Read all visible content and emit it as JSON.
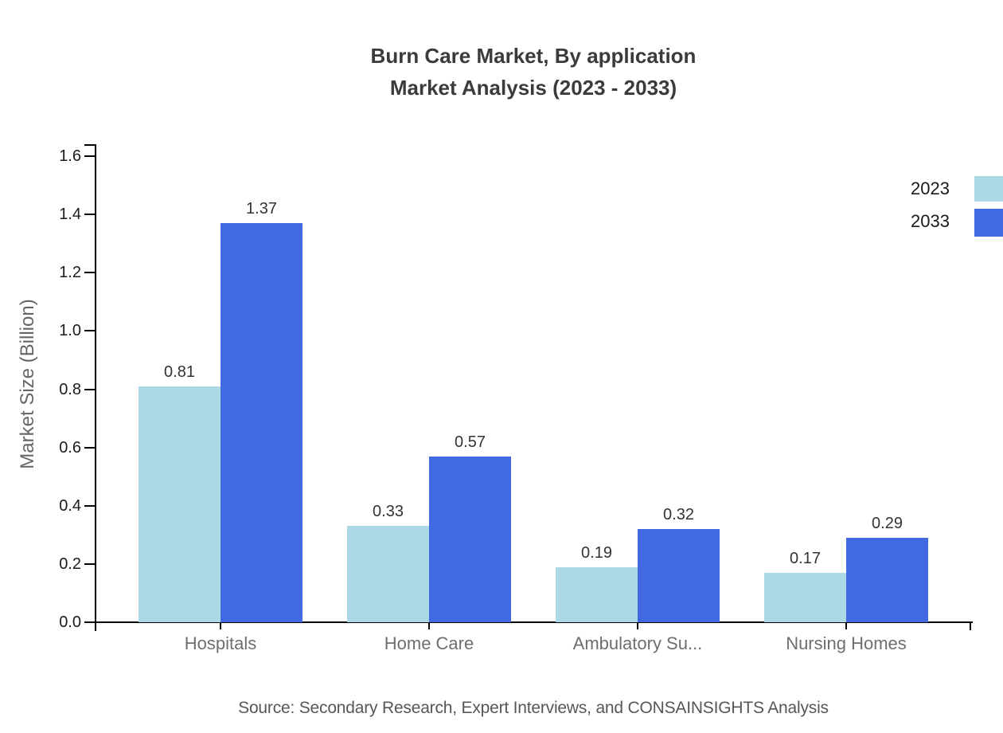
{
  "title": {
    "line1": "Burn Care Market, By application",
    "line2": "Market Analysis (2023 - 2033)"
  },
  "source": "Source: Secondary Research, Expert Interviews, and CONSAINSIGHTS Analysis",
  "legend": {
    "items": [
      {
        "label": "2023",
        "color": "#ADD8E6"
      },
      {
        "label": "2033",
        "color": "#4169E1"
      }
    ]
  },
  "chart_data": {
    "type": "bar",
    "title": "Burn Care Market, By application Market Analysis (2023 - 2033)",
    "categories": [
      "Hospitals",
      "Home Care",
      "Ambulatory Su...",
      "Nursing Homes"
    ],
    "series": [
      {
        "name": "2023",
        "color": "#ADD8E6",
        "values": [
          0.81,
          0.33,
          0.19,
          0.17
        ]
      },
      {
        "name": "2033",
        "color": "#4169E1",
        "values": [
          1.37,
          0.57,
          0.32,
          0.29
        ]
      }
    ],
    "xlabel": "",
    "ylabel": "Market Size (Billion)",
    "ylim": [
      0,
      1.6
    ],
    "ytick_step": 0.2,
    "yticks": [
      "0.0",
      "0.2",
      "0.4",
      "0.6",
      "0.8",
      "1.0",
      "1.2",
      "1.4",
      "1.6"
    ],
    "value_labels_shown": true,
    "legend_position": "top-right",
    "grid": false,
    "colors": {
      "axis": "#000000",
      "title_text": "#3b3b3b",
      "tick_label_text": "#1c1c1c",
      "category_label_text": "#6e6e6e",
      "axis_name_text": "#666666",
      "value_label_text": "#333333",
      "source_text": "#575757"
    }
  }
}
